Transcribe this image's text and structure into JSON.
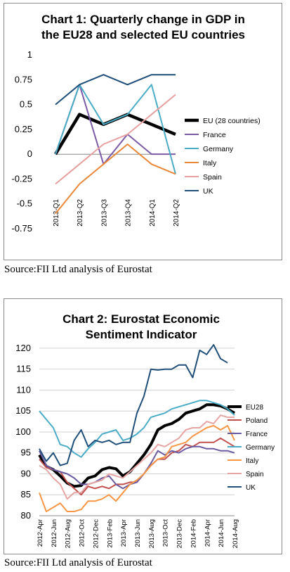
{
  "chart_data": [
    {
      "type": "line",
      "title": "Chart 1: Quarterly change in GDP in the EU28 and selected EU countries",
      "title_lines": [
        "Chart 1: Quarterly change in GDP in",
        "the EU28 and selected EU countries"
      ],
      "categories": [
        "2013-Q1",
        "2013-Q2",
        "2013-Q3",
        "2013-Q4",
        "2014-Q1",
        "2014-Q2"
      ],
      "ylim": [
        -0.75,
        1
      ],
      "yticks": [
        "1",
        "0.75",
        "0.5",
        "0.25",
        "0",
        "-0.25",
        "-0.5",
        "-0.75"
      ],
      "yticks_values": [
        1,
        0.75,
        0.5,
        0.25,
        0,
        -0.25,
        -0.5,
        -0.75
      ],
      "grid": false,
      "legend_position": "right",
      "series": [
        {
          "name": "EU (28 countries)",
          "color": "#000000",
          "values": [
            0.0,
            0.4,
            0.3,
            0.4,
            0.3,
            0.2
          ]
        },
        {
          "name": "France",
          "color": "#7b5aa6",
          "values": [
            0.0,
            0.7,
            -0.1,
            0.2,
            0.0,
            0.0
          ]
        },
        {
          "name": "Germany",
          "color": "#4bacc6",
          "values": [
            0.0,
            0.7,
            0.3,
            0.4,
            0.7,
            -0.2
          ]
        },
        {
          "name": "Italy",
          "color": "#e8883a",
          "values": [
            -0.6,
            -0.3,
            -0.1,
            0.1,
            -0.1,
            -0.2
          ]
        },
        {
          "name": "Spain",
          "color": "#e6a0a0",
          "values": [
            -0.3,
            -0.1,
            0.1,
            0.2,
            0.4,
            0.6
          ]
        },
        {
          "name": "UK",
          "color": "#1f4e79",
          "values": [
            0.5,
            0.7,
            0.8,
            0.7,
            0.8,
            0.8
          ]
        }
      ]
    },
    {
      "type": "line",
      "title": "Chart 2: Eurostat Economic Sentiment Indicator",
      "title_lines": [
        "Chart 2: Eurostat Economic",
        "Sentiment Indicator"
      ],
      "categories": [
        "2012-Apr",
        "2012-May",
        "2012-Jun",
        "2012-Jul",
        "2012-Aug",
        "2012-Sep",
        "2012-Oct",
        "2012-Nov",
        "2012-Dec",
        "2013-Jan",
        "2013-Feb",
        "2013-Mar",
        "2013-Apr",
        "2013-May",
        "2013-Jun",
        "2013-Jul",
        "2013-Aug",
        "2013-Sep",
        "2013-Oct",
        "2013-Nov",
        "2013-Dec",
        "2014-Jan",
        "2014-Feb",
        "2014-Mar",
        "2014-Apr",
        "2014-May",
        "2014-Jun",
        "2014-Jul",
        "2014-Aug"
      ],
      "tick_labels": [
        "2012-Apr",
        "2012-Jun",
        "2012-Aug",
        "2012-Oct",
        "2012-Dec",
        "2013-Feb",
        "2013-Apr",
        "2013-Jun",
        "2013-Aug",
        "2013-Oct",
        "2013-Dec",
        "2014-Feb",
        "2014-Apr",
        "2014-Jun",
        "2014-Aug"
      ],
      "ylim": [
        80,
        122
      ],
      "yticks": [
        "120",
        "115",
        "110",
        "105",
        "100",
        "95",
        "90",
        "85",
        "80"
      ],
      "yticks_values": [
        120,
        115,
        110,
        105,
        100,
        95,
        90,
        85,
        80
      ],
      "grid": true,
      "legend_position": "right",
      "series": [
        {
          "name": "EU28",
          "color": "#000000",
          "values": [
            94.5,
            91.8,
            91.0,
            89.5,
            87.8,
            87.0,
            87.2,
            89.0,
            89.5,
            91.0,
            91.5,
            91.2,
            89.5,
            90.5,
            92.5,
            94.5,
            97.0,
            100.5,
            101.5,
            102.0,
            103.0,
            104.5,
            105.0,
            105.5,
            106.5,
            106.5,
            106.2,
            105.5,
            104.5
          ]
        },
        {
          "name": "Poland",
          "color": "#c0504d",
          "values": [
            93.5,
            91.5,
            91.0,
            90.5,
            88.0,
            86.5,
            85.0,
            87.0,
            86.5,
            87.0,
            86.5,
            87.5,
            87.5,
            88.0,
            88.0,
            90.0,
            92.0,
            93.5,
            93.5,
            95.0,
            95.5,
            97.0,
            96.5,
            97.5,
            97.5,
            97.5,
            98.5,
            97.5,
            96.5
          ]
        },
        {
          "name": "France",
          "color": "#6a5aa0",
          "values": [
            95.5,
            92.0,
            91.0,
            90.5,
            90.0,
            89.0,
            87.5,
            87.5,
            88.0,
            89.0,
            89.5,
            87.5,
            86.5,
            87.5,
            88.0,
            90.0,
            92.5,
            95.5,
            94.5,
            95.5,
            95.0,
            96.0,
            96.5,
            96.5,
            96.0,
            96.0,
            95.5,
            95.5,
            95.0
          ]
        },
        {
          "name": "Germany",
          "color": "#4bacc6",
          "values": [
            105.0,
            103.0,
            101.0,
            97.0,
            96.5,
            95.0,
            94.0,
            96.0,
            97.5,
            99.5,
            100.0,
            100.5,
            98.0,
            98.5,
            99.5,
            101.0,
            103.5,
            104.0,
            104.5,
            105.5,
            106.0,
            106.5,
            107.0,
            107.5,
            107.5,
            107.0,
            106.5,
            105.5,
            104.0
          ]
        },
        {
          "name": "Italy",
          "color": "#f79646",
          "values": [
            85.5,
            81.0,
            82.0,
            83.0,
            81.0,
            81.0,
            81.5,
            83.5,
            83.5,
            84.0,
            85.0,
            83.5,
            85.5,
            87.5,
            88.5,
            90.0,
            92.0,
            93.5,
            94.0,
            96.5,
            97.0,
            97.5,
            99.0,
            100.0,
            101.0,
            101.5,
            100.5,
            101.5,
            98.0
          ]
        },
        {
          "name": "Spain",
          "color": "#e6a5a5",
          "values": [
            92.0,
            91.0,
            89.0,
            87.5,
            84.0,
            85.5,
            85.5,
            87.5,
            88.0,
            88.5,
            90.0,
            89.5,
            89.0,
            90.5,
            92.0,
            93.5,
            95.0,
            97.0,
            96.5,
            97.5,
            98.5,
            100.5,
            101.0,
            101.0,
            102.5,
            102.0,
            104.0,
            103.5,
            103.5
          ]
        },
        {
          "name": "UK",
          "color": "#1f4e79",
          "values": [
            96.0,
            93.0,
            95.0,
            92.0,
            92.5,
            98.0,
            100.5,
            96.5,
            98.0,
            97.5,
            98.0,
            97.0,
            97.5,
            97.5,
            104.5,
            108.5,
            115.0,
            114.8,
            115.0,
            115.0,
            116.0,
            116.0,
            113.0,
            119.5,
            118.5,
            120.8,
            117.5,
            116.5,
            null
          ]
        }
      ]
    }
  ],
  "sources": [
    "Source:FII Ltd analysis of Eurostat",
    "Source:FII Ltd analysis of Eurostat"
  ]
}
